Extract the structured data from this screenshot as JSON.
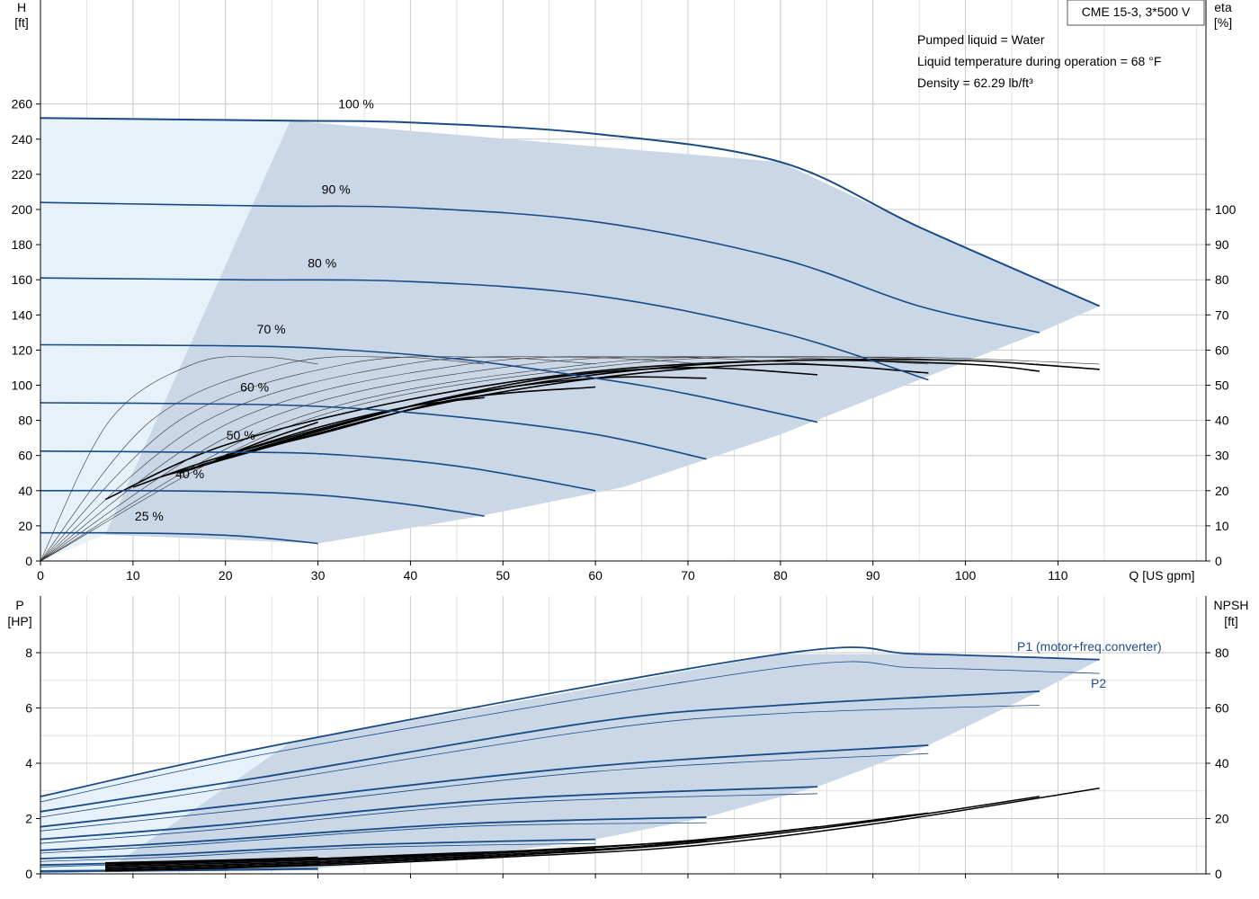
{
  "colors": {
    "curve": "#1a4a85",
    "area": "#c9d7e6",
    "area_light": "#e6f1fa",
    "eta": "#000000",
    "grid": "#c9c9c9"
  },
  "header": {
    "model": "CME 15-3, 3*500 V",
    "liquid": "Pumped liquid = Water",
    "temperature": "Liquid temperature during operation = 68 °F",
    "density": "Density = 62.29 lb/ft³"
  },
  "chart_data": [
    {
      "type": "line",
      "title": "",
      "xlabel": "Q [US gpm]",
      "ylabel_left_top": "H",
      "ylabel_left_unit": "[ft]",
      "ylabel_right_top": "eta",
      "ylabel_right_unit": "[%]",
      "xlim": [
        0,
        126
      ],
      "ylim": [
        0,
        260
      ],
      "y2lim": [
        0,
        100
      ],
      "xticks": [
        0,
        10,
        20,
        30,
        40,
        50,
        60,
        70,
        80,
        90,
        100,
        110
      ],
      "yticks": [
        0,
        20,
        40,
        60,
        80,
        100,
        120,
        140,
        160,
        180,
        200,
        220,
        240,
        260
      ],
      "y2ticks": [
        0,
        10,
        20,
        30,
        40,
        50,
        60,
        70,
        80,
        90,
        100
      ],
      "grid": true,
      "head_series": [
        {
          "name": "100 %",
          "x": [
            0,
            27,
            40,
            60,
            80,
            95,
            114.5
          ],
          "y": [
            252,
            250.5,
            249.5,
            243,
            227,
            190,
            145
          ]
        },
        {
          "name": "90 %",
          "x": [
            0,
            24,
            40,
            60,
            80,
            95,
            108
          ],
          "y": [
            204,
            202,
            201,
            193,
            172,
            145,
            130
          ]
        },
        {
          "name": "80 %",
          "x": [
            0,
            21.5,
            40,
            60,
            80,
            96
          ],
          "y": [
            161,
            160,
            159,
            151,
            130,
            103
          ]
        },
        {
          "name": "70 %",
          "x": [
            0,
            19,
            30,
            45,
            60,
            70,
            84
          ],
          "y": [
            123,
            122.5,
            121,
            115,
            104,
            95,
            79
          ]
        },
        {
          "name": "60 %",
          "x": [
            0,
            16,
            30,
            45,
            60,
            72
          ],
          "y": [
            90,
            89.5,
            88,
            82,
            72,
            58
          ]
        },
        {
          "name": "50 %",
          "x": [
            0,
            13.5,
            30,
            45,
            60
          ],
          "y": [
            62.5,
            62,
            61,
            54,
            40
          ]
        },
        {
          "name": "40 %",
          "x": [
            0,
            11,
            20,
            30,
            40,
            48
          ],
          "y": [
            40,
            40,
            39.5,
            37.5,
            32,
            25.5
          ]
        },
        {
          "name": "25 %",
          "x": [
            0,
            7,
            15,
            22,
            30
          ],
          "y": [
            16,
            16,
            15.5,
            14,
            10
          ]
        }
      ],
      "operating_area": {
        "x": [
          7,
          27,
          80,
          95,
          114.5,
          108,
          80,
          63,
          47,
          30
        ],
        "y": [
          15,
          250.5,
          227,
          190,
          145,
          130,
          72,
          42,
          25,
          10
        ]
      },
      "eta_series": [
        {
          "name": "eta 100 %",
          "x": [
            7,
            20,
            40,
            60,
            80,
            100,
            114.5
          ],
          "y": [
            17.5,
            33,
            46,
            54,
            57,
            57,
            54.5
          ]
        },
        {
          "name": "eta 90 %",
          "x": [
            10,
            20,
            40,
            60,
            80,
            100,
            108
          ],
          "y": [
            21,
            30,
            44,
            53,
            57,
            56,
            54
          ]
        },
        {
          "name": "eta 80 %",
          "x": [
            13,
            20,
            40,
            60,
            80,
            96
          ],
          "y": [
            24,
            29,
            43,
            52,
            56,
            53.5
          ]
        },
        {
          "name": "eta 70 %",
          "x": [
            15,
            25,
            40,
            55,
            70,
            84
          ],
          "y": [
            25,
            33,
            44,
            52,
            55,
            53
          ]
        },
        {
          "name": "eta 60 %",
          "x": [
            17,
            30,
            45,
            60,
            72
          ],
          "y": [
            27,
            37,
            47,
            52,
            52
          ]
        },
        {
          "name": "eta 50 %",
          "x": [
            19,
            30,
            45,
            60
          ],
          "y": [
            29,
            36,
            46,
            49.5
          ]
        },
        {
          "name": "eta 40 %",
          "x": [
            20,
            30,
            40,
            48
          ],
          "y": [
            30,
            38,
            44,
            46.5
          ]
        },
        {
          "name": "eta 25 %",
          "x": [
            21,
            25,
            30
          ],
          "y": [
            31,
            35,
            39.5
          ]
        }
      ]
    },
    {
      "type": "line",
      "title": "",
      "xlabel": "",
      "ylabel_left_top": "P",
      "ylabel_left_unit": "[HP]",
      "ylabel_right_top": "NPSH",
      "ylabel_right_unit": "[ft]",
      "xlim": [
        0,
        126
      ],
      "ylim": [
        0,
        9
      ],
      "y2lim": [
        0,
        90
      ],
      "yticks": [
        0,
        2,
        4,
        6,
        8
      ],
      "y2ticks": [
        0,
        20,
        40,
        60,
        80
      ],
      "grid": true,
      "legend_labels": [
        "P1 (motor+freq.converter)",
        "P2"
      ],
      "p1_series": [
        {
          "name": "P1 100 %",
          "x": [
            0,
            27,
            80,
            95,
            114.5
          ],
          "y": [
            2.8,
            4.75,
            7.95,
            7.95,
            7.75
          ]
        },
        {
          "name": "P1 90 %",
          "x": [
            0,
            24,
            60,
            80,
            108
          ],
          "y": [
            2.25,
            3.5,
            5.5,
            6.1,
            6.6
          ]
        },
        {
          "name": "P1 80 %",
          "x": [
            0,
            21.5,
            60,
            96
          ],
          "y": [
            1.7,
            2.5,
            3.9,
            4.65
          ]
        },
        {
          "name": "P1 70 %",
          "x": [
            0,
            19,
            50,
            84
          ],
          "y": [
            1.25,
            1.75,
            2.7,
            3.15
          ]
        },
        {
          "name": "P1 60 %",
          "x": [
            0,
            16,
            45,
            72
          ],
          "y": [
            0.85,
            1.15,
            1.8,
            2.05
          ]
        },
        {
          "name": "P1 50 %",
          "x": [
            0,
            13.5,
            35,
            60
          ],
          "y": [
            0.55,
            0.7,
            1.05,
            1.25
          ]
        },
        {
          "name": "P1 40 %",
          "x": [
            0,
            11,
            30,
            48
          ],
          "y": [
            0.32,
            0.4,
            0.55,
            0.7
          ]
        },
        {
          "name": "P1 25 %",
          "x": [
            0,
            7,
            20,
            30
          ],
          "y": [
            0.1,
            0.12,
            0.15,
            0.2
          ]
        }
      ],
      "p2_series": [
        {
          "name": "P2 100 %",
          "x": [
            0,
            27,
            80,
            95,
            114.5
          ],
          "y": [
            2.6,
            4.5,
            7.45,
            7.45,
            7.25
          ]
        },
        {
          "name": "P2 90 %",
          "x": [
            0,
            24,
            60,
            80,
            108
          ],
          "y": [
            2.05,
            3.3,
            5.2,
            5.8,
            6.1
          ]
        },
        {
          "name": "P2 80 %",
          "x": [
            0,
            21.5,
            60,
            96
          ],
          "y": [
            1.55,
            2.3,
            3.7,
            4.35
          ]
        },
        {
          "name": "P2 70 %",
          "x": [
            0,
            19,
            50,
            84
          ],
          "y": [
            1.1,
            1.6,
            2.55,
            2.9
          ]
        },
        {
          "name": "P2 60 %",
          "x": [
            0,
            16,
            45,
            72
          ],
          "y": [
            0.75,
            1.05,
            1.7,
            1.85
          ]
        },
        {
          "name": "P2 50 %",
          "x": [
            0,
            13.5,
            35,
            60
          ],
          "y": [
            0.45,
            0.6,
            0.95,
            1.1
          ]
        },
        {
          "name": "P2 40 %",
          "x": [
            0,
            11,
            30,
            48
          ],
          "y": [
            0.25,
            0.35,
            0.5,
            0.62
          ]
        },
        {
          "name": "P2 25 %",
          "x": [
            0,
            7,
            20,
            30
          ],
          "y": [
            0.06,
            0.08,
            0.12,
            0.15
          ]
        }
      ],
      "power_area": {
        "x": [
          7,
          27,
          80,
          95,
          114.5,
          108,
          96,
          84,
          72,
          60,
          48,
          30
        ],
        "y": [
          0.1,
          4.75,
          7.95,
          7.95,
          7.75,
          6.6,
          4.65,
          3.15,
          2.05,
          1.25,
          0.7,
          0.2
        ]
      },
      "npsh_series": [
        {
          "name": "NPSH 100 %",
          "x": [
            7,
            30,
            50,
            70,
            90,
            114.5
          ],
          "y": [
            1,
            3,
            6,
            10,
            18,
            31
          ]
        },
        {
          "name": "NPSH 90 %",
          "x": [
            7,
            30,
            50,
            70,
            90,
            108
          ],
          "y": [
            1,
            3.5,
            6.5,
            11,
            19,
            28
          ]
        },
        {
          "name": "NPSH 80 %",
          "x": [
            7,
            30,
            50,
            70,
            96
          ],
          "y": [
            1.5,
            4,
            7,
            11.5,
            22
          ]
        },
        {
          "name": "NPSH 70 %",
          "x": [
            7,
            30,
            50,
            70,
            84
          ],
          "y": [
            2,
            4.5,
            7.5,
            12,
            17
          ]
        },
        {
          "name": "NPSH 60 %",
          "x": [
            7,
            30,
            50,
            72
          ],
          "y": [
            2.5,
            5,
            8,
            12
          ]
        },
        {
          "name": "NPSH 50 %",
          "x": [
            7,
            30,
            45,
            60
          ],
          "y": [
            3,
            5.5,
            7.5,
            9
          ]
        },
        {
          "name": "NPSH 40 %",
          "x": [
            7,
            25,
            40,
            48
          ],
          "y": [
            3.5,
            5,
            6.5,
            7.5
          ]
        },
        {
          "name": "NPSH 25 %",
          "x": [
            7,
            20,
            30
          ],
          "y": [
            4,
            5,
            6
          ]
        }
      ]
    }
  ]
}
